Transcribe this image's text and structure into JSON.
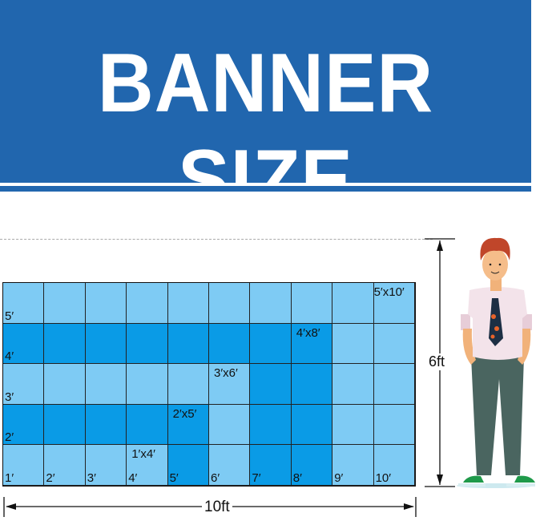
{
  "banner": {
    "title": "BANNER SIZE",
    "color": "#2166ae"
  },
  "grid": {
    "columns": 10,
    "rows": 5,
    "colors": {
      "light": "#7ecbf4",
      "dark": "#0a9be6"
    },
    "sizes": [
      {
        "label": "1′x4′",
        "height_ft": 1,
        "width_ft": 4,
        "shade": "light"
      },
      {
        "label": "2′x5′",
        "height_ft": 2,
        "width_ft": 5,
        "shade": "dark"
      },
      {
        "label": "3′x6′",
        "height_ft": 3,
        "width_ft": 6,
        "shade": "light"
      },
      {
        "label": "4′x8′",
        "height_ft": 4,
        "width_ft": 8,
        "shade": "dark"
      },
      {
        "label": "5′x10′",
        "height_ft": 5,
        "width_ft": 10,
        "shade": "light"
      }
    ],
    "column_labels": [
      "1′",
      "2′",
      "3′",
      "4′",
      "5′",
      "6′",
      "7′",
      "8′",
      "9′",
      "10′"
    ],
    "row_labels": [
      "2′",
      "3′",
      "4′",
      "5′"
    ]
  },
  "measurements": {
    "width": "10ft",
    "height": "6ft"
  },
  "person": {
    "icon": "standing-man-illustration"
  }
}
